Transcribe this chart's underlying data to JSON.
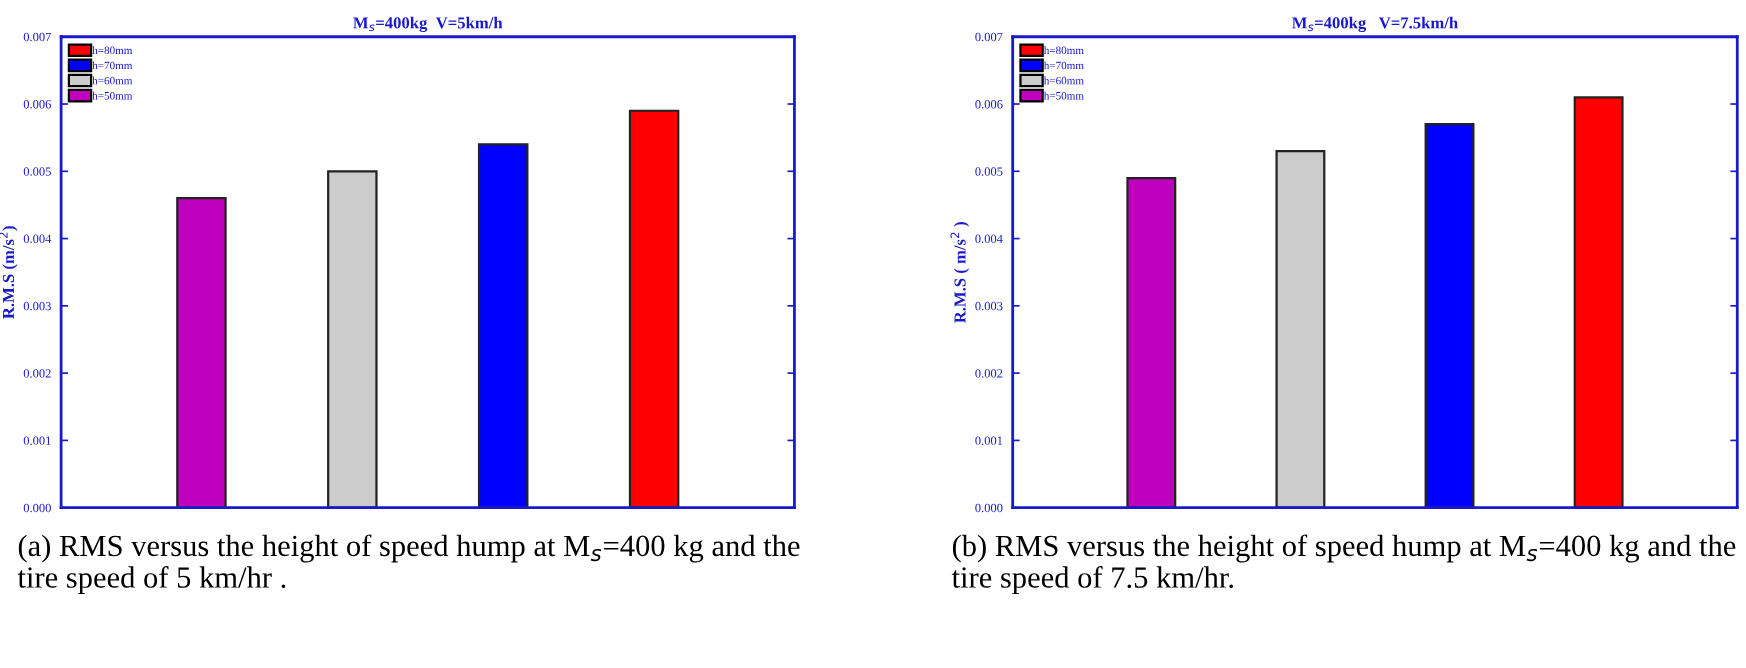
{
  "chart_data": [
    {
      "type": "bar",
      "title": "M$_{s}$=400kg  V=5km/h",
      "ylabel": "R.M.S (m/s$^{2}$)",
      "categories": [
        null,
        null,
        null,
        null
      ],
      "series": [
        {
          "name": "h=80mm",
          "color": "#ff0000",
          "values": [
            null,
            null,
            null,
            0.0059
          ]
        },
        {
          "name": "h=70mm",
          "color": "#0000ff",
          "values": [
            null,
            null,
            0.0054,
            null
          ]
        },
        {
          "name": "h=60mm",
          "color": "#cccccc",
          "values": [
            null,
            0.005,
            null,
            null
          ]
        },
        {
          "name": "h=50mm",
          "color": "#bf00bf",
          "values": [
            0.0046,
            null,
            null,
            null
          ]
        }
      ],
      "ylim": [
        0,
        0.007
      ],
      "yticks": [
        {
          "value": 0,
          "label": "0.000"
        },
        {
          "value": 0.001,
          "label": "0.001"
        },
        {
          "value": 0.002,
          "label": "0.002"
        },
        {
          "value": 0.003,
          "label": "0.003"
        },
        {
          "value": 0.004,
          "label": "0.004"
        },
        {
          "value": 0.005,
          "label": "0.005"
        },
        {
          "value": 0.006,
          "label": "0.006"
        },
        {
          "value": 0.007,
          "label": "0.007"
        }
      ],
      "legend": "top left",
      "grid": false,
      "annotations": [
        "(a) RMS versus the height of speed hump at M$_{s}$=400 kg and the tire speed of 5 km/hr ."
      ]
    },
    {
      "type": "bar",
      "title": "M$_{s}$=400kg   V=7.5km/h",
      "ylabel": "R.M.S ( m/s$^{2}$ )",
      "categories": [
        null,
        null,
        null,
        null
      ],
      "series": [
        {
          "name": "h=80mm",
          "color": "#ff0000",
          "values": [
            null,
            null,
            null,
            0.0061
          ]
        },
        {
          "name": "h=70mm",
          "color": "#0000ff",
          "values": [
            null,
            null,
            0.0057,
            null
          ]
        },
        {
          "name": "h=60mm",
          "color": "#cccccc",
          "values": [
            null,
            0.0053,
            null,
            null
          ]
        },
        {
          "name": "h=50mm",
          "color": "#bf00bf",
          "values": [
            0.0049,
            null,
            null,
            null
          ]
        }
      ],
      "ylim": [
        0,
        0.007
      ],
      "yticks": [
        {
          "value": 0,
          "label": "0.000"
        },
        {
          "value": 0.001,
          "label": "0.001"
        },
        {
          "value": 0.002,
          "label": "0.002"
        },
        {
          "value": 0.003,
          "label": "0.003"
        },
        {
          "value": 0.004,
          "label": "0.004"
        },
        {
          "value": 0.005,
          "label": "0.005"
        },
        {
          "value": 0.006,
          "label": "0.006"
        },
        {
          "value": 0.007,
          "label": "0.007"
        }
      ],
      "legend": "top left",
      "grid": false,
      "annotations": [
        "(b) RMS versus the height of speed hump at M$_{s}$=400 kg and the tire speed of 7.5 km/hr."
      ]
    }
  ]
}
